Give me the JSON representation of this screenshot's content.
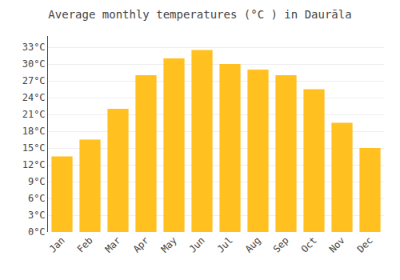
{
  "chart_data": {
    "type": "bar",
    "title": "Average monthly temperatures (°C ) in Daurāla",
    "categories": [
      "Jan",
      "Feb",
      "Mar",
      "Apr",
      "May",
      "Jun",
      "Jul",
      "Aug",
      "Sep",
      "Oct",
      "Nov",
      "Dec"
    ],
    "values": [
      13.5,
      16.5,
      22.0,
      28.0,
      31.0,
      32.5,
      30.0,
      29.0,
      28.0,
      25.5,
      19.5,
      15.0
    ],
    "color": "#FFC020",
    "ylim": [
      0,
      35
    ],
    "yticks": [
      {
        "value": 0,
        "label": "0°C"
      },
      {
        "value": 3,
        "label": "3°C"
      },
      {
        "value": 6,
        "label": "6°C"
      },
      {
        "value": 9,
        "label": "9°C"
      },
      {
        "value": 12,
        "label": "12°C"
      },
      {
        "value": 15,
        "label": "15°C"
      },
      {
        "value": 18,
        "label": "18°C"
      },
      {
        "value": 21,
        "label": "21°C"
      },
      {
        "value": 24,
        "label": "24°C"
      },
      {
        "value": 27,
        "label": "27°C"
      },
      {
        "value": 30,
        "label": "30°C"
      },
      {
        "value": 33,
        "label": "33°C"
      }
    ],
    "grid": true
  }
}
